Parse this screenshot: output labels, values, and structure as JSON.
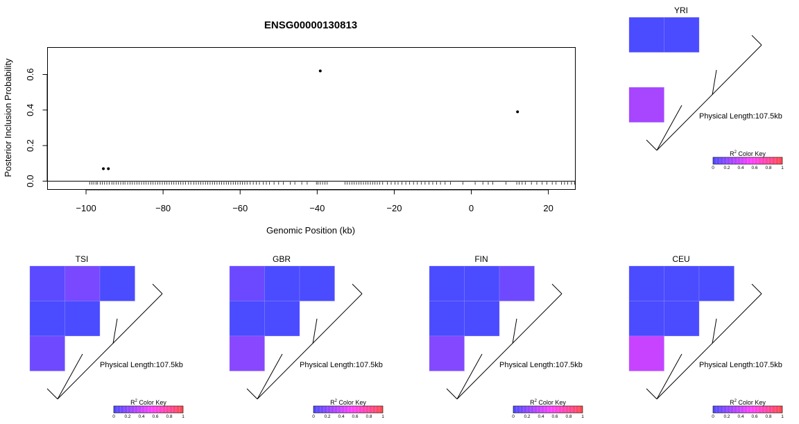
{
  "chart_data": [
    {
      "type": "scatter",
      "title": "ENSG00000130813",
      "xlabel": "Genomic Position (kb)",
      "ylabel": "Posterior Inclusion Probability",
      "xlim": [
        -110,
        27
      ],
      "ylim": [
        -0.047,
        0.752
      ],
      "xticks": [
        -100,
        -80,
        -60,
        -40,
        -20,
        0,
        20
      ],
      "xtick_labels": [
        "−100",
        "−80",
        "−60",
        "−40",
        "−20",
        "0",
        "20"
      ],
      "yticks": [
        0.0,
        0.2,
        0.4,
        0.6
      ],
      "ytick_labels": [
        "0.0",
        "0.2",
        "0.4",
        "0.6"
      ],
      "hline": 0,
      "points": [
        {
          "x": -95.5,
          "y": 0.07
        },
        {
          "x": -94.2,
          "y": 0.07
        },
        {
          "x": -39.2,
          "y": 0.62
        },
        {
          "x": 12.0,
          "y": 0.39
        }
      ],
      "rug": [
        -99,
        -98.5,
        -98,
        -97.4,
        -97,
        -96.3,
        -95.8,
        -95.2,
        -94.6,
        -94,
        -93.3,
        -92.8,
        -92.2,
        -91.6,
        -91,
        -90.4,
        -89.9,
        -89.2,
        -88.6,
        -88,
        -87.4,
        -86.8,
        -86.2,
        -85.6,
        -85,
        -84.4,
        -83.8,
        -83.2,
        -82.6,
        -82,
        -81.4,
        -80.8,
        -80.2,
        -79.6,
        -79,
        -78.4,
        -77.8,
        -77.2,
        -76.6,
        -76,
        -75.4,
        -74.8,
        -74.2,
        -73.4,
        -72.8,
        -72,
        -71.4,
        -70.8,
        -70.2,
        -69.6,
        -69,
        -68.4,
        -67.8,
        -67.2,
        -66.6,
        -66,
        -65.4,
        -64.8,
        -64.2,
        -63.6,
        -63,
        -62.4,
        -61.8,
        -61.2,
        -60.6,
        -60,
        -59.4,
        -58.8,
        -58.2,
        -57.4,
        -56.6,
        -55.8,
        -55,
        -54,
        -53.2,
        -52.4,
        -51.2,
        -50,
        -48.8,
        -47,
        -45.8,
        -44,
        -42.6,
        -40.2,
        -39.8,
        -39.2,
        -38.6,
        -38,
        -37.4,
        -32.8,
        -32.2,
        -31.6,
        -31,
        -30.4,
        -29.8,
        -29.2,
        -28.6,
        -28,
        -27.4,
        -26.8,
        -26.2,
        -25.6,
        -25,
        -24.4,
        -23.8,
        -23,
        -21.8,
        -20.8,
        -19.8,
        -19,
        -18,
        -17,
        -16,
        -15,
        -14,
        -13,
        -12,
        -11,
        -10,
        -9,
        -8,
        -6.8,
        -5.4,
        -2.2,
        1,
        3,
        4.4,
        5.6,
        9,
        11.8,
        12.4,
        13.2,
        14,
        15.6,
        17,
        18.4,
        19.6,
        21,
        22,
        23.4,
        24.2,
        25,
        26,
        26.8
      ]
    },
    {
      "type": "heatmap",
      "title": "YRI",
      "annotation": "Physical Length:107.5kb",
      "r2": [
        [
          0.0,
          0.0,
          null
        ],
        [
          null,
          null
        ],
        [
          0.28
        ]
      ]
    },
    {
      "type": "heatmap",
      "title": "TSI",
      "annotation": "Physical Length:107.5kb",
      "r2": [
        [
          0.05,
          0.14,
          0.0
        ],
        [
          0.0,
          0.0
        ],
        [
          0.11
        ]
      ]
    },
    {
      "type": "heatmap",
      "title": "GBR",
      "annotation": "Physical Length:107.5kb",
      "r2": [
        [
          0.1,
          0.0,
          0.0
        ],
        [
          0.0,
          0.0
        ],
        [
          0.19
        ]
      ]
    },
    {
      "type": "heatmap",
      "title": "FIN",
      "annotation": "Physical Length:107.5kb",
      "r2": [
        [
          0.0,
          0.0,
          0.11
        ],
        [
          0.0,
          0.0
        ],
        [
          0.17
        ]
      ]
    },
    {
      "type": "heatmap",
      "title": "CEU",
      "annotation": "Physical Length:107.5kb",
      "r2": [
        [
          0.0,
          0.0,
          0.0
        ],
        [
          0.0,
          0.0
        ],
        [
          0.38
        ]
      ]
    }
  ],
  "color_key": {
    "title_base": "R",
    "title_sup": "2",
    "title_rest": " Color Key",
    "tick_labels": [
      "0",
      "0.2",
      "0.4",
      "0.6",
      "0.8",
      "1"
    ],
    "colors": {
      "low": "#4b4bff",
      "mid": "#ff40ff",
      "high": "#ff4b4b"
    }
  }
}
